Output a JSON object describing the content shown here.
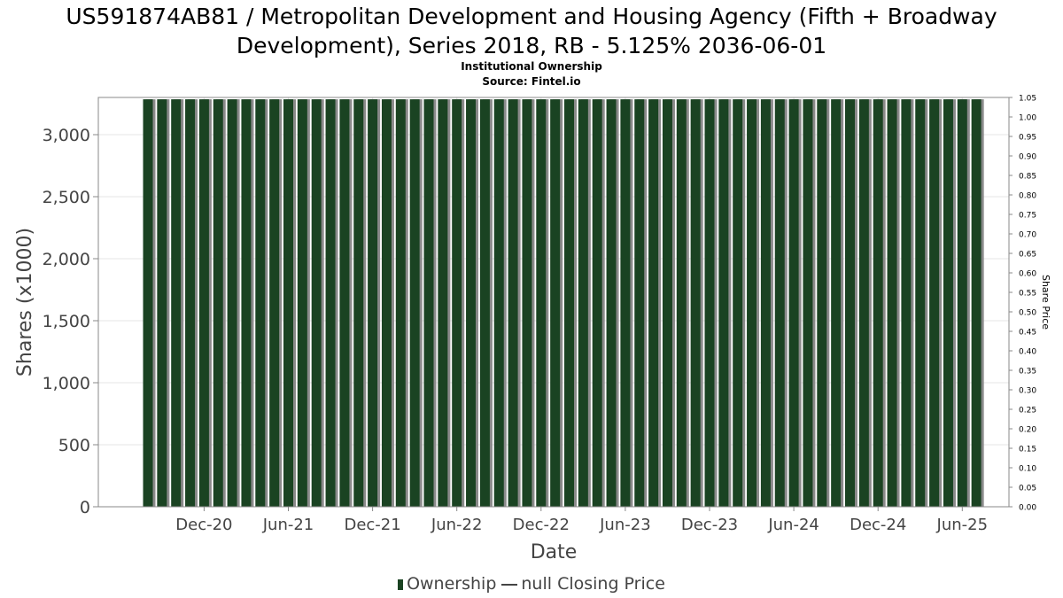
{
  "chart_data": {
    "type": "bar",
    "title_line1": "US591874AB81 / Metropolitan Development and Housing Agency (Fifth + Broadway",
    "title_line2": "Development), Series 2018, RB - 5.125% 2036-06-01",
    "subtitle_line1": "Institutional Ownership",
    "subtitle_line2": "Source: Fintel.io",
    "xlabel": "Date",
    "ylabel": "Shares (x1000)",
    "ylabel_right": "Share Price",
    "ylim": [
      0,
      3300
    ],
    "ylim_right": [
      0,
      1.05
    ],
    "y_ticks": [
      "0",
      "500",
      "1,000",
      "1,500",
      "2,000",
      "2,500",
      "3,000"
    ],
    "y_tick_values": [
      0,
      500,
      1000,
      1500,
      2000,
      2500,
      3000
    ],
    "y_right_ticks": [
      "0.00",
      "0.05",
      "0.10",
      "0.15",
      "0.20",
      "0.25",
      "0.30",
      "0.35",
      "0.40",
      "0.45",
      "0.50",
      "0.55",
      "0.60",
      "0.65",
      "0.70",
      "0.75",
      "0.80",
      "0.85",
      "0.90",
      "0.95",
      "1.00",
      "1.05"
    ],
    "x_ticks": [
      "Dec-20",
      "Jun-21",
      "Dec-21",
      "Jun-22",
      "Dec-22",
      "Jun-23",
      "Dec-23",
      "Jun-24",
      "Dec-24",
      "Jun-25"
    ],
    "x_tick_months": [
      4,
      10,
      16,
      22,
      28,
      34,
      40,
      46,
      52,
      58
    ],
    "series": [
      {
        "name": "Ownership",
        "color": "#1a4322",
        "start_month": "Aug-20",
        "values": [
          3285,
          3285,
          3285,
          3285,
          3285,
          3285,
          3285,
          3285,
          3285,
          3285,
          3285,
          3285,
          3285,
          3285,
          3285,
          3285,
          3285,
          3285,
          3285,
          3285,
          3285,
          3285,
          3285,
          3285,
          3285,
          3285,
          3285,
          3285,
          3285,
          3285,
          3285,
          3285,
          3285,
          3285,
          3285,
          3285,
          3285,
          3285,
          3285,
          3285,
          3285,
          3285,
          3285,
          3285,
          3285,
          3285,
          3285,
          3285,
          3285,
          3285,
          3285,
          3285,
          3285,
          3285,
          3285,
          3285,
          3285,
          3285,
          3285,
          3285
        ]
      }
    ],
    "grid": true,
    "legend_position": "bottom"
  },
  "legend": {
    "ownership_label": "Ownership",
    "price_label": "null Closing Price"
  },
  "colors": {
    "bar": "#1a4322",
    "bar_shadow": "#8a8a8a",
    "grid": "#e6e6e6",
    "frame": "#888888"
  }
}
